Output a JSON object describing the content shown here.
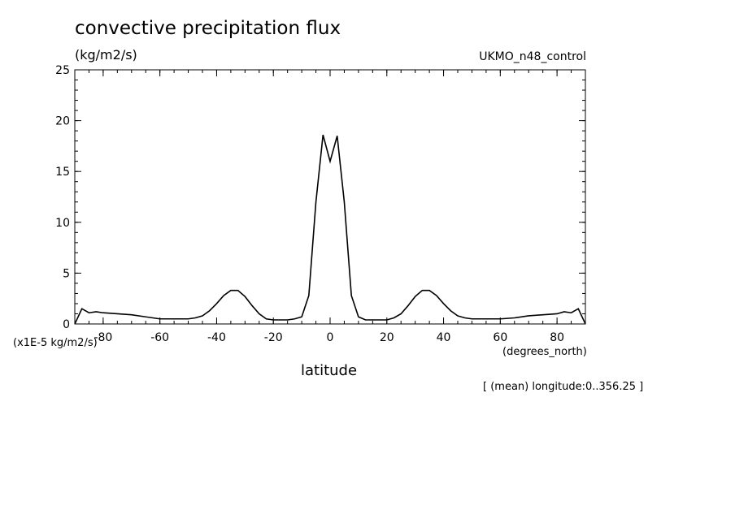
{
  "header": {
    "title": "convective precipitation flux",
    "units": "(kg/m2/s)",
    "dataset": "UKMO_n48_control"
  },
  "axes": {
    "y_scale_label": "(x1E-5 kg/m2/s)",
    "x_unit_label": "(degrees_north)",
    "x_title": "latitude"
  },
  "footnote": "[ (mean) longitude:0..356.25 ]",
  "chart_data": {
    "type": "line",
    "title": "convective precipitation flux",
    "xlabel": "latitude",
    "ylabel": "(kg/m2/s)",
    "xlim": [
      -90,
      90
    ],
    "ylim": [
      0,
      25
    ],
    "x_ticks": [
      -80,
      -60,
      -40,
      -20,
      0,
      20,
      40,
      60,
      80
    ],
    "x_tick_labels": [
      "-80",
      "-60",
      "-40",
      "-20",
      "0",
      "20",
      "40",
      "60",
      "80"
    ],
    "y_ticks": [
      0,
      5,
      10,
      15,
      20,
      25
    ],
    "y_tick_labels": [
      "0",
      "5",
      "10",
      "15",
      "20",
      "25"
    ],
    "line_color": "#000000",
    "series": [
      {
        "x": [
          -90,
          -87.5,
          -85,
          -82.5,
          -80,
          -75,
          -70,
          -65,
          -60,
          -55,
          -50,
          -47.5,
          -45,
          -42.5,
          -40,
          -37.5,
          -35,
          -32.5,
          -30,
          -27.5,
          -25,
          -22.5,
          -20,
          -17.5,
          -15,
          -12.5,
          -10,
          -7.5,
          -5,
          -2.5,
          0,
          2.5,
          5,
          7.5,
          10,
          12.5,
          15,
          17.5,
          20,
          22.5,
          25,
          27.5,
          30,
          32.5,
          35,
          37.5,
          40,
          42.5,
          45,
          47.5,
          50,
          55,
          60,
          65,
          70,
          75,
          80,
          82.5,
          85,
          87.5,
          90
        ],
        "y": [
          0,
          1.5,
          1.1,
          1.2,
          1.1,
          1.0,
          0.9,
          0.7,
          0.5,
          0.5,
          0.5,
          0.6,
          0.8,
          1.3,
          2.0,
          2.8,
          3.3,
          3.3,
          2.7,
          1.8,
          1.0,
          0.5,
          0.4,
          0.4,
          0.4,
          0.5,
          0.7,
          2.8,
          12.0,
          18.6,
          16.0,
          18.5,
          12.0,
          2.8,
          0.7,
          0.4,
          0.4,
          0.4,
          0.4,
          0.6,
          1.0,
          1.8,
          2.7,
          3.3,
          3.3,
          2.8,
          2.0,
          1.3,
          0.8,
          0.6,
          0.5,
          0.5,
          0.5,
          0.6,
          0.8,
          0.9,
          1.0,
          1.2,
          1.1,
          1.5,
          0
        ]
      }
    ]
  }
}
